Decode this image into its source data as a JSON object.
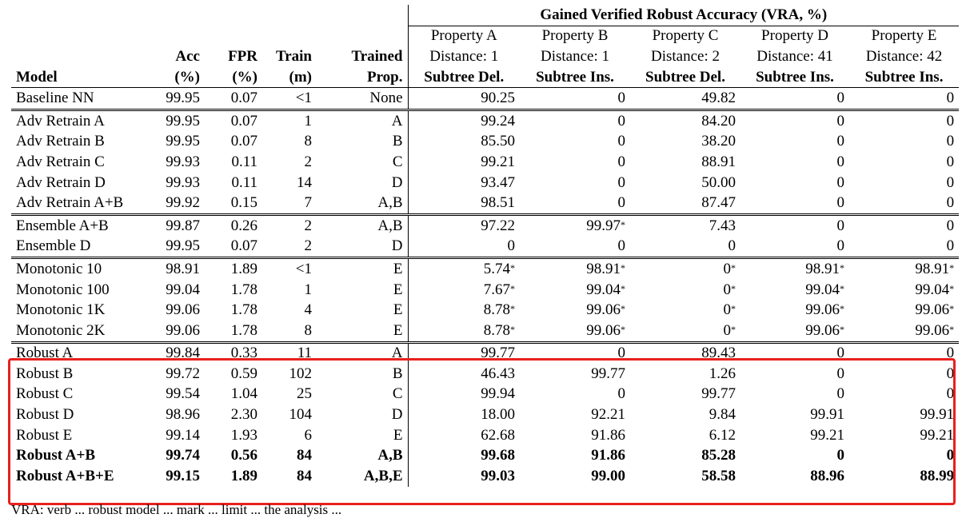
{
  "group_title": "Gained Verified Robust Accuracy (VRA, %)",
  "headers": {
    "model": "Model",
    "acc": [
      "Acc",
      "(%)"
    ],
    "fpr": [
      "FPR",
      "(%)"
    ],
    "train": [
      "Train",
      "(m)"
    ],
    "trained": [
      "Trained",
      "Prop."
    ],
    "properties": [
      {
        "name": "Property A",
        "distance": "Distance: 1",
        "op": "Subtree Del."
      },
      {
        "name": "Property B",
        "distance": "Distance: 1",
        "op": "Subtree Ins."
      },
      {
        "name": "Property C",
        "distance": "Distance: 2",
        "op": "Subtree Del."
      },
      {
        "name": "Property D",
        "distance": "Distance: 41",
        "op": "Subtree Ins."
      },
      {
        "name": "Property E",
        "distance": "Distance: 42",
        "op": "Subtree Ins."
      }
    ]
  },
  "rows": [
    {
      "model": "Baseline NN",
      "acc": "99.95",
      "fpr": "0.07",
      "train": "<1",
      "prop": "None",
      "a": "90.25",
      "b": "0",
      "c": "49.82",
      "d": "0",
      "e": "0"
    },
    {
      "model": "Adv Retrain A",
      "acc": "99.95",
      "fpr": "0.07",
      "train": "1",
      "prop": "A",
      "a": "99.24",
      "b": "0",
      "c": "84.20",
      "d": "0",
      "e": "0"
    },
    {
      "model": "Adv Retrain B",
      "acc": "99.95",
      "fpr": "0.07",
      "train": "8",
      "prop": "B",
      "a": "85.50",
      "b": "0",
      "c": "38.20",
      "d": "0",
      "e": "0"
    },
    {
      "model": "Adv Retrain C",
      "acc": "99.93",
      "fpr": "0.11",
      "train": "2",
      "prop": "C",
      "a": "99.21",
      "b": "0",
      "c": "88.91",
      "d": "0",
      "e": "0"
    },
    {
      "model": "Adv Retrain D",
      "acc": "99.93",
      "fpr": "0.11",
      "train": "14",
      "prop": "D",
      "a": "93.47",
      "b": "0",
      "c": "50.00",
      "d": "0",
      "e": "0"
    },
    {
      "model": "Adv Retrain A+B",
      "acc": "99.92",
      "fpr": "0.15",
      "train": "7",
      "prop": "A,B",
      "a": "98.51",
      "b": "0",
      "c": "87.47",
      "d": "0",
      "e": "0"
    },
    {
      "model": "Ensemble A+B",
      "acc": "99.87",
      "fpr": "0.26",
      "train": "2",
      "prop": "A,B",
      "a": "97.22",
      "b": "99.97*",
      "c": "7.43",
      "d": "0",
      "e": "0"
    },
    {
      "model": "Ensemble D",
      "acc": "99.95",
      "fpr": "0.07",
      "train": "2",
      "prop": "D",
      "a": "0",
      "b": "0",
      "c": "0",
      "d": "0",
      "e": "0"
    },
    {
      "model": "Monotonic 10",
      "acc": "98.91",
      "fpr": "1.89",
      "train": "<1",
      "prop": "E",
      "a": "5.74*",
      "b": "98.91*",
      "c": "0*",
      "d": "98.91*",
      "e": "98.91*"
    },
    {
      "model": "Monotonic 100",
      "acc": "99.04",
      "fpr": "1.78",
      "train": "1",
      "prop": "E",
      "a": "7.67*",
      "b": "99.04*",
      "c": "0*",
      "d": "99.04*",
      "e": "99.04*"
    },
    {
      "model": "Monotonic 1K",
      "acc": "99.06",
      "fpr": "1.78",
      "train": "4",
      "prop": "E",
      "a": "8.78*",
      "b": "99.06*",
      "c": "0*",
      "d": "99.06*",
      "e": "99.06*"
    },
    {
      "model": "Monotonic 2K",
      "acc": "99.06",
      "fpr": "1.78",
      "train": "8",
      "prop": "E",
      "a": "8.78*",
      "b": "99.06*",
      "c": "0*",
      "d": "99.06*",
      "e": "99.06*"
    },
    {
      "model": "Robust A",
      "acc": "99.84",
      "fpr": "0.33",
      "train": "11",
      "prop": "A",
      "a": "99.77",
      "b": "0",
      "c": "89.43",
      "d": "0",
      "e": "0"
    },
    {
      "model": "Robust B",
      "acc": "99.72",
      "fpr": "0.59",
      "train": "102",
      "prop": "B",
      "a": "46.43",
      "b": "99.77",
      "c": "1.26",
      "d": "0",
      "e": "0"
    },
    {
      "model": "Robust C",
      "acc": "99.54",
      "fpr": "1.04",
      "train": "25",
      "prop": "C",
      "a": "99.94",
      "b": "0",
      "c": "99.77",
      "d": "0",
      "e": "0"
    },
    {
      "model": "Robust D",
      "acc": "98.96",
      "fpr": "2.30",
      "train": "104",
      "prop": "D",
      "a": "18.00",
      "b": "92.21",
      "c": "9.84",
      "d": "99.91",
      "e": "99.91"
    },
    {
      "model": "Robust E",
      "acc": "99.14",
      "fpr": "1.93",
      "train": "6",
      "prop": "E",
      "a": "62.68",
      "b": "91.86",
      "c": "6.12",
      "d": "99.21",
      "e": "99.21"
    },
    {
      "model": "Robust A+B",
      "acc": "99.74",
      "fpr": "0.56",
      "train": "84",
      "prop": "A,B",
      "a": "99.68",
      "b": "91.86",
      "c": "85.28",
      "d": "0",
      "e": "0"
    },
    {
      "model": "Robust A+B+E",
      "acc": "99.15",
      "fpr": "1.89",
      "train": "84",
      "prop": "A,B,E",
      "a": "99.03",
      "b": "99.00",
      "c": "58.58",
      "d": "88.96",
      "e": "88.99"
    }
  ],
  "footnote": "VRA: verb ... robust model   ... mark ... limit ... the analysis ..."
}
